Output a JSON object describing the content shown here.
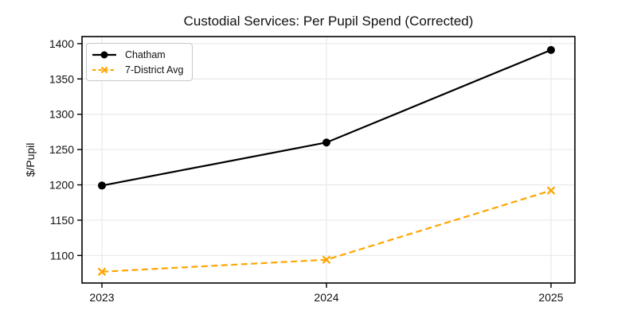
{
  "figure": {
    "background": "#ffffff",
    "text_color": "#111111",
    "grid_color": "#e8e8e8",
    "spine_color": "#000000"
  },
  "chart_data": {
    "type": "line",
    "title": "Custodial Services: Per Pupil Spend (Corrected)",
    "xlabel": "",
    "ylabel": "$/Pupil",
    "x": [
      "2023",
      "2024",
      "2025"
    ],
    "y_ticks": [
      1100,
      1150,
      1200,
      1250,
      1300,
      1350,
      1400
    ],
    "ylim": [
      1061,
      1410
    ],
    "grid": true,
    "legend_position": "upper-left",
    "series": [
      {
        "name": "Chatham",
        "color": "#000000",
        "line_style": "solid",
        "marker": "circle",
        "values": [
          1199,
          1260,
          1391
        ]
      },
      {
        "name": "7-District Avg",
        "color": "#FFA500",
        "line_style": "dashed",
        "marker": "x",
        "values": [
          1077,
          1094,
          1192
        ]
      }
    ]
  }
}
